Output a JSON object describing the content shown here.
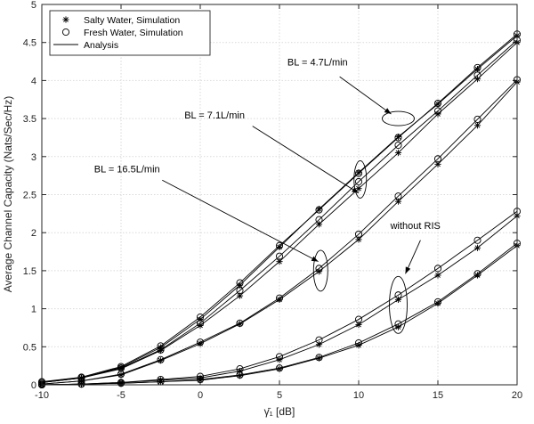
{
  "chart_data": {
    "type": "line",
    "xlabel": "γ̄₁ [dB]",
    "ylabel": "Average Channel Capacity (Nats/Sec/Hz)",
    "xlim": [
      -10,
      20
    ],
    "ylim": [
      0,
      5
    ],
    "xticks": [
      "-10",
      "-5",
      "0",
      "5",
      "10",
      "15",
      "20"
    ],
    "yticks": [
      "0",
      "0.5",
      "1",
      "1.5",
      "2",
      "2.5",
      "3",
      "3.5",
      "4",
      "4.5",
      "5"
    ],
    "grid": true,
    "legend": {
      "position": "top-left",
      "entries": [
        {
          "label": "Salty Water, Simulation",
          "marker": "asterisk"
        },
        {
          "label": "Fresh Water, Simulation",
          "marker": "circle"
        },
        {
          "label": "Analysis",
          "marker": "line"
        }
      ]
    },
    "x": [
      -10,
      -7.5,
      -5,
      -2.5,
      0,
      2.5,
      5,
      7.5,
      10,
      12.5,
      15,
      17.5,
      20
    ],
    "series": [
      {
        "group": "BL = 4.7L/min",
        "water": "salty",
        "values": [
          0.03,
          0.09,
          0.23,
          0.49,
          0.86,
          1.31,
          1.81,
          2.31,
          2.79,
          3.26,
          3.69,
          4.15,
          4.59
        ]
      },
      {
        "group": "BL = 4.7L/min",
        "water": "fresh",
        "values": [
          0.04,
          0.1,
          0.24,
          0.51,
          0.89,
          1.34,
          1.83,
          2.3,
          2.78,
          3.25,
          3.7,
          4.17,
          4.61
        ]
      },
      {
        "group": "BL = 7.1L/min",
        "water": "salty",
        "values": [
          0.03,
          0.09,
          0.21,
          0.45,
          0.78,
          1.17,
          1.62,
          2.11,
          2.58,
          3.05,
          3.56,
          4.02,
          4.5
        ]
      },
      {
        "group": "BL = 7.1L/min",
        "water": "fresh",
        "values": [
          0.03,
          0.09,
          0.22,
          0.46,
          0.81,
          1.24,
          1.69,
          2.17,
          2.67,
          3.15,
          3.6,
          4.07,
          4.53
        ]
      },
      {
        "group": "BL = 16.5L/min",
        "water": "salty",
        "values": [
          0.01,
          0.05,
          0.13,
          0.32,
          0.54,
          0.8,
          1.12,
          1.49,
          1.91,
          2.41,
          2.9,
          3.41,
          3.98
        ]
      },
      {
        "group": "BL = 16.5L/min",
        "water": "fresh",
        "values": [
          0.01,
          0.05,
          0.14,
          0.33,
          0.56,
          0.81,
          1.14,
          1.53,
          1.98,
          2.48,
          2.97,
          3.49,
          4.01
        ]
      },
      {
        "group": "without RIS",
        "water": "salty",
        "values": [
          0.0,
          0.01,
          0.03,
          0.06,
          0.09,
          0.18,
          0.33,
          0.53,
          0.79,
          1.12,
          1.44,
          1.8,
          2.22
        ]
      },
      {
        "group": "without RIS",
        "water": "fresh",
        "values": [
          0.0,
          0.01,
          0.03,
          0.07,
          0.11,
          0.21,
          0.37,
          0.59,
          0.86,
          1.18,
          1.53,
          1.9,
          2.28
        ]
      },
      {
        "group": "without RIS",
        "water": "salty",
        "values": [
          0.0,
          0.01,
          0.02,
          0.04,
          0.06,
          0.12,
          0.21,
          0.35,
          0.52,
          0.76,
          1.07,
          1.44,
          1.83
        ]
      },
      {
        "group": "without RIS",
        "water": "fresh",
        "values": [
          0.0,
          0.01,
          0.02,
          0.04,
          0.07,
          0.13,
          0.22,
          0.36,
          0.55,
          0.8,
          1.09,
          1.46,
          1.86
        ]
      }
    ],
    "annotations": [
      {
        "text": "BL = 4.7L/min"
      },
      {
        "text": "BL = 7.1L/min"
      },
      {
        "text": "BL = 16.5L/min"
      },
      {
        "text": "without RIS"
      }
    ]
  }
}
